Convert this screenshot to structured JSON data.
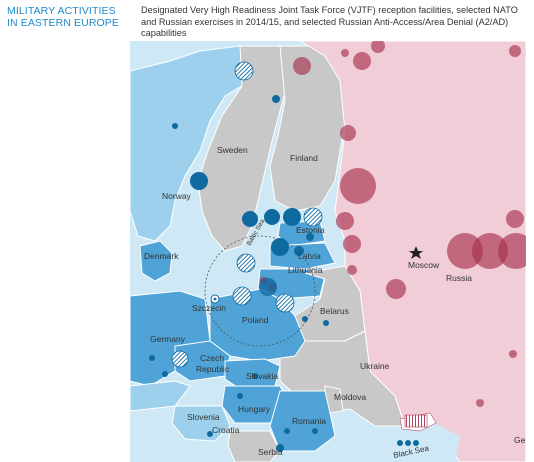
{
  "header": {
    "title": "MILITARY ACTIVITIES IN EASTERN EUROPE",
    "subtitle": "Designated Very High Readiness Joint Task Force (VJTF) reception facilities, selected NATO and Russian exercises in 2014/15, and selected Russian Anti-Access/Area Denial (A2/AD) capabilities"
  },
  "map": {
    "labels": {
      "sweden": "Sweden",
      "finland": "Finland",
      "norway": "Norway",
      "estonia": "Estonia",
      "latvia": "Latvia",
      "lithuania": "Lithuania",
      "denmark": "Denmark",
      "moscow": "Moscow",
      "russia": "Russia",
      "szczecin": "Szczecin",
      "poland": "Poland",
      "belarus": "Belarus",
      "germany": "Germany",
      "czech_republic_1": "Czech",
      "czech_republic_2": "Republic",
      "ukraine": "Ukraine",
      "slovakia": "Slovakia",
      "hungary": "Hungary",
      "moldova": "Moldova",
      "slovenia": "Slovenia",
      "croatia": "Croatia",
      "romania": "Romania",
      "serbia": "Serbia",
      "baltic_sea": "Baltic Sea",
      "black_sea": "Black Sea",
      "georgia_partial": "Ge"
    },
    "colors": {
      "nato_dark": "#0f6aa0",
      "nato_mid": "#4fa3d6",
      "nato_light": "#9cd0ec",
      "russia_fill": "#f0cdd7",
      "russia_marker": "#a8304f",
      "sea": "#cfe8f5",
      "neutral": "#c8c8c8"
    },
    "icons": {
      "capital": "star-icon",
      "vjtf_facility": "circled-dot-icon",
      "hatched_marker": "hatched-circle-icon"
    }
  }
}
